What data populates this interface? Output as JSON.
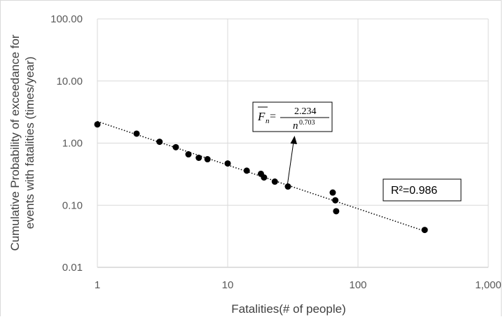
{
  "chart_data": {
    "type": "scatter",
    "xlabel": "Fatalities(# of people)",
    "ylabel_line1": "Cumulative Probability of exceedance for",
    "ylabel_line2": "events with fatalities (times/year)",
    "x_scale": "log",
    "y_scale": "log",
    "xlim": [
      1,
      1000
    ],
    "ylim": [
      0.01,
      100
    ],
    "x_tick_labels": [
      "1",
      "10",
      "100",
      "1,000"
    ],
    "y_tick_labels": [
      "100.00",
      "10.00",
      "1.00",
      "0.10",
      "0.01"
    ],
    "x_ticks": [
      1,
      10,
      100,
      1000
    ],
    "y_ticks": [
      100,
      10,
      1,
      0.1,
      0.01
    ],
    "grid": true,
    "series": [
      {
        "points": [
          [
            1,
            2.0
          ],
          [
            2,
            1.42
          ],
          [
            3,
            1.05
          ],
          [
            4,
            0.86
          ],
          [
            5,
            0.66
          ],
          [
            6,
            0.58
          ],
          [
            7,
            0.55
          ],
          [
            10,
            0.47
          ],
          [
            14,
            0.36
          ],
          [
            18,
            0.32
          ],
          [
            19,
            0.28
          ],
          [
            23,
            0.24
          ],
          [
            29,
            0.2
          ],
          [
            64,
            0.16
          ],
          [
            67,
            0.12
          ],
          [
            68,
            0.08
          ],
          [
            325,
            0.04
          ]
        ]
      }
    ],
    "trendline": {
      "type": "power",
      "coefficient": 2.234,
      "exponent": -0.703,
      "x_range": [
        1,
        335
      ],
      "style": "dotted"
    },
    "annotations": {
      "equation": {
        "lhs": "F",
        "lhs_sub": "n",
        "equals": "=",
        "numerator": "2.234",
        "denominator_base": "n",
        "denominator_exp": "0.703"
      },
      "r_squared": "R²=0.986"
    },
    "colors": {
      "marker": "#000000",
      "grid": "#d9d9d9",
      "axis": "#bfbfbf",
      "text": "#595959"
    }
  }
}
